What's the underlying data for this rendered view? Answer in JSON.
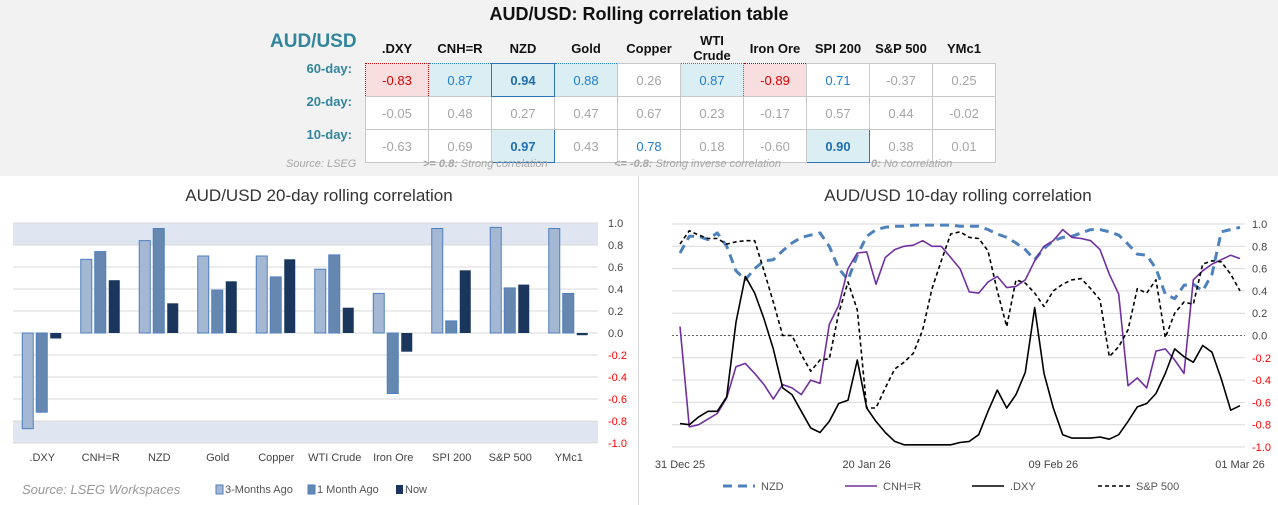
{
  "table": {
    "title": "AUD/USD: Rolling correlation table",
    "pair": "AUD/USD",
    "columns": [
      ".DXY",
      "CNH=R",
      "NZD",
      "Gold",
      "Copper",
      "WTI Crude",
      "Iron Ore",
      "SPI 200",
      "S&P 500",
      "YMc1"
    ],
    "rows": [
      {
        "label": "60-day:",
        "values": [
          "-0.83",
          "0.87",
          "0.94",
          "0.88",
          "0.26",
          "0.87",
          "-0.89",
          "0.71",
          "-0.37",
          "0.25"
        ],
        "highlight": [
          "neg",
          "pos",
          "top",
          "pos",
          "",
          "pos",
          "neg",
          "mod",
          "",
          ""
        ]
      },
      {
        "label": "20-day:",
        "values": [
          "-0.05",
          "0.48",
          "0.27",
          "0.47",
          "0.67",
          "0.23",
          "-0.17",
          "0.57",
          "0.44",
          "-0.02"
        ],
        "highlight": [
          "",
          "",
          "",
          "",
          "",
          "",
          "",
          "",
          "",
          ""
        ]
      },
      {
        "label": "10-day:",
        "values": [
          "-0.63",
          "0.69",
          "0.97",
          "0.43",
          "0.78",
          "0.18",
          "-0.60",
          "0.90",
          "0.38",
          "0.01"
        ],
        "highlight": [
          "",
          "",
          "top",
          "",
          "mod",
          "",
          "",
          "top",
          "",
          ""
        ]
      }
    ],
    "notes": {
      "source": "Source: LSEG",
      "strong_key": ">= 0.8:",
      "strong": "Strong correlation",
      "inverse_key": "<= -0.8:",
      "inverse": "Strong inverse correlation",
      "zero_key": "0:",
      "zero": "No correlation"
    }
  },
  "chart_data": [
    {
      "type": "bar",
      "title": "AUD/USD 20-day rolling correlation",
      "categories": [
        ".DXY",
        "CNH=R",
        "NZD",
        "Gold",
        "Copper",
        "WTI Crude",
        "Iron Ore",
        "SPI 200",
        "S&P 500",
        "YMc1"
      ],
      "series": [
        {
          "name": "3-Months Ago",
          "color": "#a5b8d3",
          "values": [
            -0.87,
            0.67,
            0.84,
            0.7,
            0.7,
            0.58,
            0.36,
            0.95,
            0.96,
            0.95
          ]
        },
        {
          "name": "1 Month Ago",
          "color": "#6688b0",
          "values": [
            -0.72,
            0.74,
            0.95,
            0.39,
            0.51,
            0.71,
            -0.55,
            0.11,
            0.41,
            0.36
          ]
        },
        {
          "name": "Now",
          "color": "#1b365d",
          "values": [
            -0.05,
            0.48,
            0.27,
            0.47,
            0.67,
            0.23,
            -0.17,
            0.57,
            0.44,
            -0.02
          ]
        }
      ],
      "ylim": [
        -1.0,
        1.0
      ],
      "yticks": [
        "1.0",
        "0.8",
        "0.6",
        "0.4",
        "0.2",
        "0.0",
        "-0.2",
        "-0.4",
        "-0.6",
        "-0.8",
        "-1.0"
      ],
      "bands": [
        [
          0.8,
          1.0
        ],
        [
          -1.0,
          -0.8
        ]
      ],
      "grid": true,
      "legend": "bottom",
      "negative_tick_color": "#ff0000",
      "source": "Source:",
      "source_name": "LSEG Workspaces"
    },
    {
      "type": "line",
      "title": "AUD/USD 10-day rolling correlation",
      "x_range": [
        "31 Dec 25",
        "01 Mar 26"
      ],
      "xticks": [
        "31 Dec 25",
        "20 Jan 26",
        "09 Feb 26",
        "01 Mar 26"
      ],
      "ylim": [
        -1.0,
        1.0
      ],
      "yticks": [
        "1.0",
        "0.8",
        "0.6",
        "0.4",
        "0.2",
        "0.0",
        "-0.2",
        "-0.4",
        "-0.6",
        "-0.8",
        "-1.0"
      ],
      "grid": true,
      "legend": "bottom",
      "negative_tick_color": "#ff0000",
      "series": [
        {
          "name": "NZD",
          "color": "#4f81bd",
          "style": "dashed-thick",
          "values": [
            0.74,
            0.89,
            0.89,
            0.86,
            0.92,
            0.8,
            0.58,
            0.5,
            0.6,
            0.67,
            0.68,
            0.76,
            0.83,
            0.88,
            0.9,
            0.92,
            0.8,
            0.6,
            0.5,
            0.72,
            0.89,
            0.95,
            0.97,
            0.98,
            0.98,
            0.99,
            0.99,
            0.99,
            0.99,
            0.99,
            0.98,
            0.98,
            0.98,
            0.95,
            0.91,
            0.88,
            0.83,
            0.77,
            0.68,
            0.78,
            0.85,
            0.88,
            0.89,
            0.92,
            0.95,
            0.95,
            0.93,
            0.9,
            0.82,
            0.73,
            0.72,
            0.6,
            0.37,
            0.33,
            0.45,
            0.46,
            0.4,
            0.55,
            0.93,
            0.95,
            0.97
          ]
        },
        {
          "name": "CNH=R",
          "color": "#7030a0",
          "style": "solid",
          "values": [
            0.08,
            -0.82,
            -0.8,
            -0.75,
            -0.7,
            -0.56,
            -0.28,
            -0.25,
            -0.34,
            -0.44,
            -0.57,
            -0.44,
            -0.47,
            -0.53,
            -0.4,
            -0.43,
            0.1,
            0.27,
            0.6,
            0.74,
            0.75,
            0.46,
            0.7,
            0.77,
            0.8,
            0.81,
            0.85,
            0.8,
            0.8,
            0.7,
            0.6,
            0.39,
            0.38,
            0.48,
            0.53,
            0.43,
            0.44,
            0.5,
            0.67,
            0.8,
            0.85,
            0.95,
            0.88,
            0.87,
            0.85,
            0.77,
            0.55,
            0.37,
            -0.45,
            -0.38,
            -0.47,
            -0.14,
            -0.12,
            -0.22,
            -0.34,
            0.5,
            0.58,
            0.64,
            0.68,
            0.72,
            0.69
          ]
        },
        {
          "name": ".DXY",
          "color": "#000000",
          "style": "solid",
          "values": [
            -0.79,
            -0.8,
            -0.73,
            -0.68,
            -0.68,
            -0.55,
            0.12,
            0.53,
            0.38,
            0.15,
            -0.12,
            -0.47,
            -0.53,
            -0.68,
            -0.83,
            -0.87,
            -0.77,
            -0.61,
            -0.58,
            -0.22,
            -0.65,
            -0.77,
            -0.87,
            -0.95,
            -0.98,
            -0.98,
            -0.98,
            -0.98,
            -0.98,
            -0.98,
            -0.96,
            -0.95,
            -0.89,
            -0.68,
            -0.49,
            -0.65,
            -0.53,
            -0.33,
            0.25,
            -0.34,
            -0.65,
            -0.89,
            -0.92,
            -0.92,
            -0.92,
            -0.91,
            -0.93,
            -0.89,
            -0.77,
            -0.64,
            -0.61,
            -0.52,
            -0.34,
            -0.12,
            -0.19,
            -0.24,
            -0.09,
            -0.15,
            -0.39,
            -0.67,
            -0.63
          ]
        },
        {
          "name": "S&P 500",
          "color": "#000000",
          "style": "dashed",
          "values": [
            0.82,
            0.94,
            0.9,
            0.87,
            0.87,
            0.82,
            0.84,
            0.85,
            0.85,
            0.58,
            0.3,
            0.0,
            0.0,
            -0.17,
            -0.32,
            -0.22,
            -0.21,
            0.2,
            0.48,
            0.23,
            -0.65,
            -0.65,
            -0.47,
            -0.3,
            -0.24,
            -0.16,
            0.05,
            0.42,
            0.67,
            0.91,
            0.93,
            0.88,
            0.87,
            0.76,
            0.4,
            0.08,
            0.5,
            0.47,
            0.38,
            0.26,
            0.4,
            0.46,
            0.5,
            0.51,
            0.42,
            0.32,
            -0.19,
            -0.1,
            0.05,
            0.42,
            0.38,
            0.5,
            -0.02,
            0.2,
            0.3,
            0.28,
            0.64,
            0.67,
            0.66,
            0.55,
            0.4
          ]
        }
      ]
    }
  ]
}
